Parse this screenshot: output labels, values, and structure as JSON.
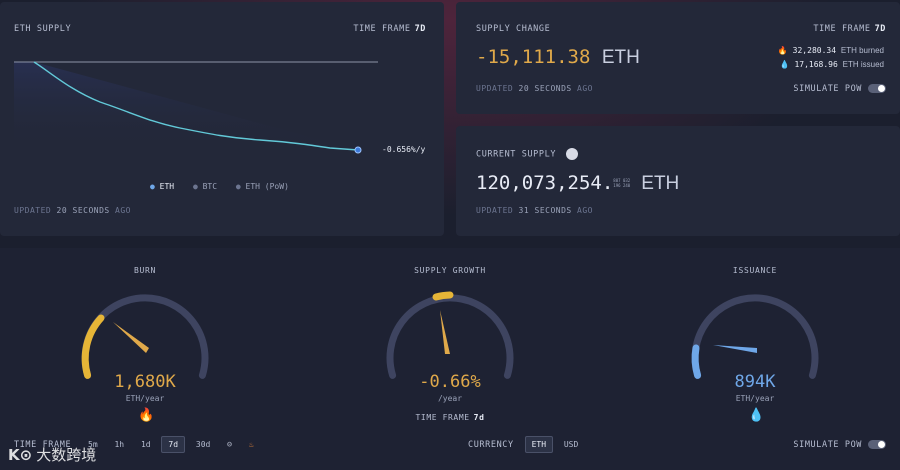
{
  "eth_supply": {
    "title": "ETH SUPPLY",
    "time_frame_label": "TIME FRAME",
    "time_frame_value": "7d",
    "rate": "-0.656%/y",
    "legend": [
      "ETH",
      "BTC",
      "ETH (PoW)"
    ],
    "updated_prefix": "UPDATED",
    "updated_value": "20 SECONDS",
    "updated_suffix": "AGO"
  },
  "supply_change": {
    "title": "SUPPLY CHANGE",
    "time_frame_label": "TIME FRAME",
    "time_frame_value": "7d",
    "value": "-15,111.38",
    "unit": "ETH",
    "burned_value": "32,280.34",
    "burned_label": "ETH burned",
    "issued_value": "17,168.96",
    "issued_label": "ETH issued",
    "updated_prefix": "UPDATED",
    "updated_value": "20 SECONDS",
    "updated_suffix": "AGO",
    "simulate_label": "SIMULATE PoW"
  },
  "current_supply": {
    "title": "CURRENT SUPPLY",
    "value": "120,073,254.",
    "decimals": [
      "807",
      "032",
      "196",
      "240"
    ],
    "unit": "ETH",
    "updated_prefix": "UPDATED",
    "updated_value": "31 SECONDS",
    "updated_suffix": "AGO"
  },
  "gauges": {
    "burn": {
      "title": "BURN",
      "value": "1,680K",
      "unit": "ETH/year",
      "level": 0.35
    },
    "growth": {
      "title": "SUPPLY GROWTH",
      "value": "-0.66%",
      "unit": "/year",
      "time_frame_label": "TIME FRAME",
      "time_frame_value": "7d",
      "level": 0.45
    },
    "issuance": {
      "title": "ISSUANCE",
      "value": "894K",
      "unit": "ETH/year",
      "level": 0.2
    }
  },
  "footer": {
    "time_frame_label": "TIME FRAME",
    "time_frames": [
      "5m",
      "1h",
      "1d",
      "7d",
      "30d"
    ],
    "active_time_frame": "7d",
    "currency_label": "CURRENCY",
    "currencies": [
      "ETH",
      "USD"
    ],
    "active_currency": "ETH",
    "simulate_label": "SIMULATE PoW",
    "watermark": "大数跨境"
  },
  "colors": {
    "burn": "#e0a94a",
    "growth": "#e0a94a",
    "issuance": "#6fa7e8",
    "line": "#62c9d8"
  }
}
